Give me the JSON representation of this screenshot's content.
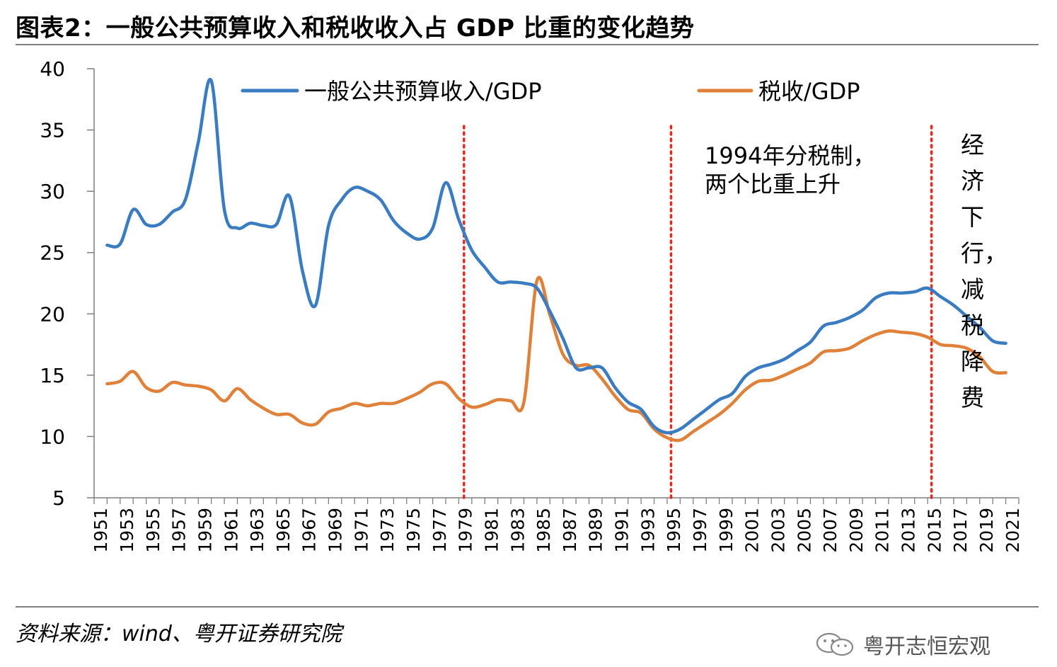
{
  "title": "图表2：一般公共预算收入和税收收入占 GDP 比重的变化趋势",
  "source": "资料来源：wind、粤开证券研究院",
  "watermark": "粤开志恒宏观",
  "colors": {
    "blue": "#3a7cc2",
    "orange": "#e0813a",
    "red": "#e8271f",
    "axis": "#7f7f7f"
  },
  "chart_data": {
    "type": "line",
    "title": "一般公共预算收入和税收收入占 GDP 比重的变化趋势",
    "ylim": [
      5,
      40
    ],
    "yticks": [
      5,
      10,
      15,
      20,
      25,
      30,
      35,
      40
    ],
    "x": [
      1952,
      1953,
      1954,
      1955,
      1956,
      1957,
      1958,
      1959,
      1960,
      1961,
      1962,
      1963,
      1964,
      1965,
      1966,
      1967,
      1968,
      1969,
      1970,
      1971,
      1972,
      1973,
      1974,
      1975,
      1976,
      1977,
      1978,
      1979,
      1980,
      1981,
      1982,
      1983,
      1984,
      1985,
      1986,
      1987,
      1988,
      1989,
      1990,
      1991,
      1992,
      1993,
      1994,
      1995,
      1996,
      1997,
      1998,
      1999,
      2000,
      2001,
      2002,
      2003,
      2004,
      2005,
      2006,
      2007,
      2008,
      2009,
      2010,
      2011,
      2012,
      2013,
      2014,
      2015,
      2016,
      2017,
      2018,
      2019,
      2020,
      2021
    ],
    "xtick_labels": [
      "1951",
      "1953",
      "1955",
      "1957",
      "1959",
      "1961",
      "1963",
      "1965",
      "1967",
      "1969",
      "1971",
      "1973",
      "1975",
      "1977",
      "1979",
      "1981",
      "1983",
      "1985",
      "1987",
      "1989",
      "1991",
      "1993",
      "1995",
      "1997",
      "1999",
      "2001",
      "2003",
      "2005",
      "2007",
      "2009",
      "2011",
      "2013",
      "2015",
      "2017",
      "2019",
      "2021"
    ],
    "legend": [
      "一般公共预算收入/GDP",
      "税收/GDP"
    ],
    "series": [
      {
        "name": "一般公共预算收入/GDP",
        "values": [
          25.6,
          25.7,
          28.5,
          27.3,
          27.3,
          28.3,
          29.3,
          34.0,
          39.0,
          28.5,
          27.0,
          27.4,
          27.2,
          27.3,
          29.6,
          23.5,
          20.7,
          27.2,
          29.3,
          30.3,
          30.0,
          29.3,
          27.6,
          26.6,
          26.1,
          27.0,
          30.7,
          27.7,
          25.2,
          23.8,
          22.6,
          22.6,
          22.5,
          22.1,
          20.2,
          18.0,
          15.6,
          15.6,
          15.6,
          14.0,
          12.8,
          12.2,
          10.8,
          10.3,
          10.6,
          11.4,
          12.2,
          13.0,
          13.5,
          14.9,
          15.6,
          15.9,
          16.3,
          17.0,
          17.7,
          19.0,
          19.3,
          19.7,
          20.3,
          21.3,
          21.7,
          21.7,
          21.8,
          22.1,
          21.4,
          20.7,
          19.8,
          18.9,
          17.8,
          17.6
        ]
      },
      {
        "name": "税收/GDP",
        "values": [
          14.3,
          14.5,
          15.3,
          14.0,
          13.7,
          14.4,
          14.2,
          14.1,
          13.8,
          12.9,
          13.9,
          13.0,
          12.3,
          11.8,
          11.8,
          11.1,
          11.0,
          12.0,
          12.3,
          12.7,
          12.5,
          12.7,
          12.7,
          13.1,
          13.6,
          14.3,
          14.3,
          13.1,
          12.4,
          12.6,
          13.0,
          12.9,
          12.8,
          22.7,
          19.9,
          16.7,
          15.8,
          15.8,
          14.7,
          13.3,
          12.2,
          11.9,
          10.6,
          9.9,
          9.7,
          10.4,
          11.1,
          11.8,
          12.7,
          13.8,
          14.5,
          14.6,
          15.0,
          15.5,
          16.0,
          16.9,
          17.0,
          17.2,
          17.8,
          18.3,
          18.6,
          18.5,
          18.4,
          18.1,
          17.5,
          17.4,
          17.2,
          16.5,
          15.3,
          15.2
        ]
      }
    ],
    "reference_lines": [
      {
        "x": 1979.4,
        "style": "dotted",
        "color": "red"
      },
      {
        "x": 1995.3,
        "style": "dotted",
        "color": "red"
      },
      {
        "x": 2015.3,
        "style": "dotted",
        "color": "red"
      }
    ],
    "annotations": [
      {
        "text": "1994年分税制，\n两个比重上升",
        "near": "after 1994 line"
      },
      {
        "text": "经济下行，减税降费",
        "near": "after 2015 line",
        "vertical": true
      }
    ],
    "annotation_lines": {
      "a1_line1": "1994年分税制，",
      "a1_line2": "两个比重上升",
      "a2_chars": [
        "经",
        "济",
        "下",
        "行，",
        "减",
        "税",
        "降",
        "费"
      ]
    }
  }
}
